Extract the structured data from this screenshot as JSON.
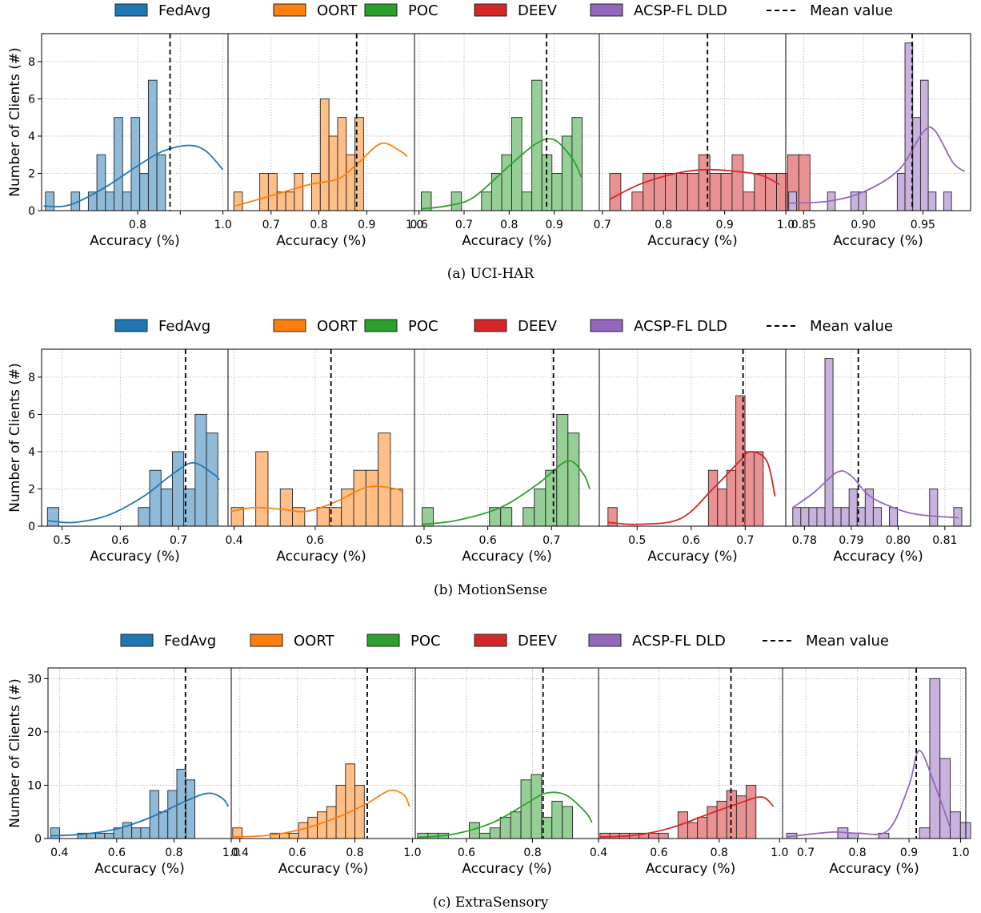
{
  "legend_labels": [
    "FedAvg",
    "OORT",
    "POC",
    "DEEV",
    "ACSP-FL DLD"
  ],
  "mean_label": "Mean value",
  "colors": {
    "series": [
      "#1f77b4",
      "#ff7f0e",
      "#2ca02c",
      "#d62728",
      "#9467bd"
    ],
    "fill": [
      "#8fbbd9",
      "#ffbf86",
      "#95cf95",
      "#ea9293",
      "#c9b3de"
    ]
  },
  "axes": {
    "xlabel": "Accuracy (%)",
    "ylabel": "Number of Clients (#)"
  },
  "chart_data": [
    {
      "type": "bar",
      "caption": "(a)  UCI-HAR",
      "ylim": [
        0,
        9.5
      ],
      "yticks": [
        0,
        2,
        4,
        6,
        8
      ],
      "grid": true,
      "legend": "top",
      "panels": [
        {
          "series": "FedAvg",
          "xlim": [
            0.575,
            1.012
          ],
          "xticks": [
            0.8,
            0.9,
            1.0
          ],
          "xtick_labels": [
            "0.8",
            "",
            "1.0"
          ],
          "bins_from": 0.584,
          "bin_width": 0.0201,
          "counts": [
            1,
            0,
            0,
            1,
            0,
            1,
            3,
            1,
            5,
            1,
            5,
            2,
            7,
            3
          ],
          "mean": 0.876,
          "kde": [
            [
              0.58,
              0.25
            ],
            [
              0.64,
              0.3
            ],
            [
              0.72,
              1.2
            ],
            [
              0.8,
              2.4
            ],
            [
              0.86,
              3.2
            ],
            [
              0.92,
              3.5
            ],
            [
              0.96,
              3.2
            ],
            [
              1.0,
              2.2
            ]
          ]
        },
        {
          "series": "OORT",
          "xlim": [
            0.61,
            1.0
          ],
          "xticks": [
            0.7,
            0.8,
            0.9,
            1.0
          ],
          "xtick_labels": [
            "0.7",
            "0.8",
            "0.9",
            "1.0"
          ],
          "bins_from": 0.622,
          "bin_width": 0.0181,
          "counts": [
            1,
            0,
            0,
            2,
            2,
            1,
            1,
            2,
            0,
            2,
            6,
            4,
            5,
            3,
            5
          ],
          "mean": 0.879,
          "kde": [
            [
              0.625,
              0.25
            ],
            [
              0.7,
              0.8
            ],
            [
              0.78,
              1.4
            ],
            [
              0.84,
              1.7
            ],
            [
              0.88,
              2.5
            ],
            [
              0.93,
              3.6
            ],
            [
              0.97,
              3.2
            ],
            [
              0.985,
              2.9
            ]
          ]
        },
        {
          "series": "POC",
          "xlim": [
            0.59,
            1.0
          ],
          "xticks": [
            0.6,
            0.7,
            0.8,
            0.9
          ],
          "xtick_labels": [
            "0.6",
            "0.7",
            "0.8",
            "0.9"
          ],
          "bins_from": 0.605,
          "bin_width": 0.0223,
          "counts": [
            1,
            0,
            0,
            1,
            0,
            0,
            1,
            2,
            3,
            5,
            1,
            7,
            3,
            2,
            4,
            5
          ],
          "mean": 0.883,
          "kde": [
            [
              0.605,
              0.1
            ],
            [
              0.66,
              0.25
            ],
            [
              0.72,
              0.7
            ],
            [
              0.8,
              2.4
            ],
            [
              0.86,
              3.6
            ],
            [
              0.9,
              3.8
            ],
            [
              0.94,
              2.8
            ],
            [
              0.96,
              1.8
            ]
          ]
        },
        {
          "series": "DEEV",
          "xlim": [
            0.695,
            1.0
          ],
          "xticks": [
            0.7,
            0.8,
            0.9,
            1.0
          ],
          "xtick_labels": [
            "0.7",
            "0.8",
            "0.9",
            "1.0"
          ],
          "bins_from": 0.712,
          "bin_width": 0.0182,
          "counts": [
            2,
            0,
            1,
            2,
            2,
            2,
            2,
            2,
            3,
            2,
            2,
            3,
            1,
            2,
            2,
            2,
            3,
            3
          ],
          "mean": 0.872,
          "kde": [
            [
              0.712,
              0.6
            ],
            [
              0.76,
              1.4
            ],
            [
              0.82,
              2.0
            ],
            [
              0.87,
              2.2
            ],
            [
              0.92,
              2.1
            ],
            [
              0.96,
              1.9
            ],
            [
              0.99,
              1.4
            ]
          ]
        },
        {
          "series": "ACSP-FL DLD",
          "xlim": [
            0.835,
            0.99
          ],
          "xticks": [
            0.85,
            0.9,
            0.95
          ],
          "xtick_labels": [
            "0.85",
            "0.90",
            "0.95"
          ],
          "bins_from": 0.8375,
          "bin_width": 0.0065,
          "counts": [
            1,
            0,
            0,
            0,
            0,
            1,
            0,
            0,
            1,
            1,
            0,
            0,
            0,
            0,
            2,
            9,
            5,
            7,
            1,
            0,
            1
          ],
          "mean": 0.941,
          "kde": [
            [
              0.838,
              0.4
            ],
            [
              0.87,
              0.5
            ],
            [
              0.9,
              1.0
            ],
            [
              0.93,
              2.2
            ],
            [
              0.95,
              4.2
            ],
            [
              0.96,
              4.3
            ],
            [
              0.975,
              2.6
            ],
            [
              0.985,
              2.1
            ]
          ]
        }
      ]
    },
    {
      "type": "bar",
      "caption": "(b)  MotionSense",
      "ylim": [
        0,
        9.5
      ],
      "yticks": [
        0,
        2,
        4,
        6,
        8
      ],
      "grid": true,
      "legend": "top",
      "panels": [
        {
          "series": "FedAvg",
          "xlim": [
            0.465,
            0.785
          ],
          "xticks": [
            0.5,
            0.6,
            0.7
          ],
          "xtick_labels": [
            "0.5",
            "0.6",
            "0.7"
          ],
          "bins_from": 0.475,
          "bin_width": 0.0195,
          "counts": [
            1,
            0,
            0,
            0,
            0,
            0,
            0,
            0,
            1,
            3,
            2,
            4,
            2,
            6,
            5
          ],
          "mean": 0.712,
          "kde": [
            [
              0.475,
              0.3
            ],
            [
              0.52,
              0.2
            ],
            [
              0.58,
              0.6
            ],
            [
              0.64,
              1.6
            ],
            [
              0.69,
              2.8
            ],
            [
              0.725,
              3.4
            ],
            [
              0.76,
              2.8
            ],
            [
              0.77,
              2.5
            ]
          ]
        },
        {
          "series": "OORT",
          "xlim": [
            0.385,
            0.845
          ],
          "xticks": [
            0.4,
            0.6
          ],
          "xtick_labels": [
            "0.4",
            "0.6"
          ],
          "bins_from": 0.393,
          "bin_width": 0.0302,
          "counts": [
            1,
            0,
            4,
            0,
            2,
            1,
            0,
            1,
            1,
            2,
            3,
            3,
            5,
            2
          ],
          "mean": 0.639,
          "kde": [
            [
              0.393,
              0.8
            ],
            [
              0.45,
              1.0
            ],
            [
              0.52,
              0.9
            ],
            [
              0.58,
              0.8
            ],
            [
              0.65,
              1.3
            ],
            [
              0.73,
              2.1
            ],
            [
              0.8,
              2.0
            ],
            [
              0.815,
              1.8
            ]
          ]
        },
        {
          "series": "POC",
          "xlim": [
            0.485,
            0.775
          ],
          "xticks": [
            0.5,
            0.6,
            0.7
          ],
          "xtick_labels": [
            "0.5",
            "0.6",
            "0.7"
          ],
          "bins_from": 0.497,
          "bin_width": 0.0176,
          "counts": [
            1,
            0,
            0,
            0,
            0,
            0,
            1,
            1,
            0,
            1,
            2,
            3,
            6,
            5
          ],
          "mean": 0.703,
          "kde": [
            [
              0.497,
              0.1
            ],
            [
              0.55,
              0.3
            ],
            [
              0.62,
              1.0
            ],
            [
              0.68,
              2.3
            ],
            [
              0.725,
              3.5
            ],
            [
              0.75,
              2.8
            ],
            [
              0.76,
              2.0
            ]
          ]
        },
        {
          "series": "DEEV",
          "xlim": [
            0.43,
            0.775
          ],
          "xticks": [
            0.5,
            0.6,
            0.7
          ],
          "xtick_labels": [
            "0.5",
            "0.6",
            "0.7"
          ],
          "bins_from": 0.446,
          "bin_width": 0.0169,
          "counts": [
            1,
            0,
            0,
            0,
            0,
            0,
            0,
            0,
            0,
            0,
            0,
            3,
            2,
            3,
            7,
            4,
            4
          ],
          "mean": 0.696,
          "kde": [
            [
              0.446,
              0.2
            ],
            [
              0.5,
              0.1
            ],
            [
              0.58,
              0.4
            ],
            [
              0.64,
              2.0
            ],
            [
              0.69,
              3.5
            ],
            [
              0.71,
              4.0
            ],
            [
              0.74,
              3.5
            ],
            [
              0.755,
              1.6
            ]
          ]
        },
        {
          "series": "ACSP-FL DLD",
          "xlim": [
            0.776,
            0.8155
          ],
          "xticks": [
            0.78,
            0.79,
            0.8,
            0.81
          ],
          "xtick_labels": [
            "0.78",
            "0.79",
            "0.80",
            "0.81"
          ],
          "bins_from": 0.7775,
          "bin_width": 0.00172,
          "counts": [
            1,
            1,
            1,
            1,
            9,
            1,
            1,
            2,
            1,
            2,
            1,
            0,
            1,
            0,
            0,
            0,
            0,
            2,
            0,
            0,
            1
          ],
          "mean": 0.7915,
          "kde": [
            [
              0.7775,
              1.0
            ],
            [
              0.782,
              1.8
            ],
            [
              0.787,
              2.9
            ],
            [
              0.79,
              2.7
            ],
            [
              0.794,
              1.6
            ],
            [
              0.8,
              0.9
            ],
            [
              0.805,
              0.6
            ],
            [
              0.813,
              0.45
            ]
          ]
        }
      ]
    },
    {
      "type": "bar",
      "caption": "(c)  ExtraSensory",
      "ylim": [
        0,
        32
      ],
      "yticks": [
        0,
        10,
        20,
        30
      ],
      "grid": true,
      "legend": "top",
      "panels": [
        {
          "series": "FedAvg",
          "xlim": [
            0.36,
            1.0
          ],
          "xticks": [
            0.4,
            0.6,
            0.8,
            1.0
          ],
          "xtick_labels": [
            "0.4",
            "0.6",
            "0.8",
            "1.0"
          ],
          "bins_from": 0.369,
          "bin_width": 0.0315,
          "counts": [
            2,
            0,
            0,
            1,
            1,
            1,
            1,
            2,
            3,
            2,
            2,
            9,
            5,
            9,
            13,
            11
          ],
          "mean": 0.84,
          "kde": [
            [
              0.369,
              0.5
            ],
            [
              0.48,
              0.8
            ],
            [
              0.6,
              1.8
            ],
            [
              0.72,
              4.0
            ],
            [
              0.84,
              7.0
            ],
            [
              0.92,
              8.5
            ],
            [
              0.97,
              7.5
            ],
            [
              0.99,
              6.0
            ]
          ]
        },
        {
          "series": "OORT",
          "xlim": [
            0.37,
            1.01
          ],
          "xticks": [
            0.4,
            0.6,
            0.8,
            1.0
          ],
          "xtick_labels": [
            "0.4",
            "0.6",
            "0.8",
            "1.0"
          ],
          "bins_from": 0.375,
          "bin_width": 0.0327,
          "counts": [
            2,
            0,
            0,
            0,
            1,
            1,
            1,
            3,
            4,
            5,
            6,
            10,
            14,
            10
          ],
          "mean": 0.843,
          "kde": [
            [
              0.375,
              0.3
            ],
            [
              0.5,
              0.6
            ],
            [
              0.62,
              1.8
            ],
            [
              0.74,
              4.0
            ],
            [
              0.84,
              6.5
            ],
            [
              0.92,
              9.0
            ],
            [
              0.97,
              8.2
            ],
            [
              0.99,
              6.0
            ]
          ]
        },
        {
          "series": "POC",
          "xlim": [
            0.445,
            1.0
          ],
          "xticks": [
            0.6,
            0.8
          ],
          "xtick_labels": [
            "0.6",
            "0.8"
          ],
          "bins_from": 0.452,
          "bin_width": 0.0313,
          "counts": [
            1,
            1,
            1,
            0,
            0,
            3,
            1,
            2,
            4,
            5,
            11,
            12,
            4,
            7,
            6
          ],
          "mean": 0.832,
          "kde": [
            [
              0.452,
              0.2
            ],
            [
              0.56,
              0.8
            ],
            [
              0.68,
              3.0
            ],
            [
              0.78,
              6.5
            ],
            [
              0.84,
              8.5
            ],
            [
              0.9,
              8.2
            ],
            [
              0.96,
              5.0
            ],
            [
              0.98,
              3.0
            ]
          ]
        },
        {
          "series": "DEEV",
          "xlim": [
            0.4,
            1.01
          ],
          "xticks": [
            0.4,
            0.6,
            0.8,
            1.0
          ],
          "xtick_labels": [
            "0.4",
            "0.6",
            "0.8",
            "1.0"
          ],
          "bins_from": 0.405,
          "bin_width": 0.0323,
          "counts": [
            1,
            1,
            1,
            1,
            1,
            1,
            1,
            0,
            5,
            3,
            4,
            6,
            7,
            9,
            8,
            10
          ],
          "mean": 0.839,
          "kde": [
            [
              0.405,
              0.3
            ],
            [
              0.52,
              0.6
            ],
            [
              0.64,
              2.0
            ],
            [
              0.76,
              4.5
            ],
            [
              0.86,
              6.5
            ],
            [
              0.94,
              7.8
            ],
            [
              0.98,
              6.0
            ]
          ]
        },
        {
          "series": "ACSP-FL DLD",
          "xlim": [
            0.655,
            1.01
          ],
          "xticks": [
            0.7,
            0.8,
            0.9,
            1.0
          ],
          "xtick_labels": [
            "0.7",
            "0.8",
            "0.9",
            "1.0"
          ],
          "bins_from": 0.663,
          "bin_width": 0.0198,
          "counts": [
            1,
            0,
            0,
            0,
            0,
            2,
            1,
            0,
            0,
            1,
            0,
            0,
            0,
            2,
            30,
            15,
            5,
            3
          ],
          "mean": 0.914,
          "kde": [
            [
              0.663,
              0.3
            ],
            [
              0.75,
              1.2
            ],
            [
              0.8,
              1.0
            ],
            [
              0.86,
              1.6
            ],
            [
              0.9,
              10.0
            ],
            [
              0.92,
              16.5
            ],
            [
              0.95,
              10.0
            ],
            [
              0.98,
              2.0
            ]
          ]
        }
      ]
    }
  ]
}
